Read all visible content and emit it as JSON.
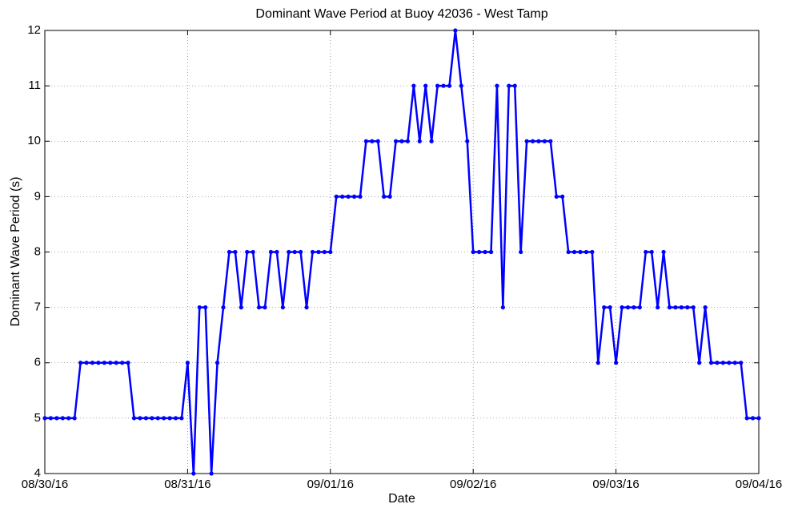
{
  "chart_data": {
    "type": "line",
    "title": "Dominant Wave Period at Buoy 42036 - West Tamp",
    "xlabel": "Date",
    "ylabel": "Dominant Wave Period (s)",
    "x": [
      "2016-08-30T00:00",
      "2016-08-30T01:00",
      "2016-08-30T02:00",
      "2016-08-30T03:00",
      "2016-08-30T04:00",
      "2016-08-30T05:00",
      "2016-08-30T06:00",
      "2016-08-30T07:00",
      "2016-08-30T08:00",
      "2016-08-30T09:00",
      "2016-08-30T10:00",
      "2016-08-30T11:00",
      "2016-08-30T12:00",
      "2016-08-30T13:00",
      "2016-08-30T14:00",
      "2016-08-30T15:00",
      "2016-08-30T16:00",
      "2016-08-30T17:00",
      "2016-08-30T18:00",
      "2016-08-30T19:00",
      "2016-08-30T20:00",
      "2016-08-30T21:00",
      "2016-08-30T22:00",
      "2016-08-30T23:00",
      "2016-08-31T00:00",
      "2016-08-31T01:00",
      "2016-08-31T02:00",
      "2016-08-31T03:00",
      "2016-08-31T04:00",
      "2016-08-31T05:00",
      "2016-08-31T06:00",
      "2016-08-31T07:00",
      "2016-08-31T08:00",
      "2016-08-31T09:00",
      "2016-08-31T10:00",
      "2016-08-31T11:00",
      "2016-08-31T12:00",
      "2016-08-31T13:00",
      "2016-08-31T14:00",
      "2016-08-31T15:00",
      "2016-08-31T16:00",
      "2016-08-31T17:00",
      "2016-08-31T18:00",
      "2016-08-31T19:00",
      "2016-08-31T20:00",
      "2016-08-31T21:00",
      "2016-08-31T22:00",
      "2016-08-31T23:00",
      "2016-09-01T00:00",
      "2016-09-01T01:00",
      "2016-09-01T02:00",
      "2016-09-01T03:00",
      "2016-09-01T04:00",
      "2016-09-01T05:00",
      "2016-09-01T06:00",
      "2016-09-01T07:00",
      "2016-09-01T08:00",
      "2016-09-01T09:00",
      "2016-09-01T10:00",
      "2016-09-01T11:00",
      "2016-09-01T12:00",
      "2016-09-01T13:00",
      "2016-09-01T14:00",
      "2016-09-01T15:00",
      "2016-09-01T16:00",
      "2016-09-01T17:00",
      "2016-09-01T18:00",
      "2016-09-01T19:00",
      "2016-09-01T20:00",
      "2016-09-01T21:00",
      "2016-09-01T22:00",
      "2016-09-01T23:00",
      "2016-09-02T00:00",
      "2016-09-02T01:00",
      "2016-09-02T02:00",
      "2016-09-02T03:00",
      "2016-09-02T04:00",
      "2016-09-02T05:00",
      "2016-09-02T06:00",
      "2016-09-02T07:00",
      "2016-09-02T08:00",
      "2016-09-02T09:00",
      "2016-09-02T10:00",
      "2016-09-02T11:00",
      "2016-09-02T12:00",
      "2016-09-02T13:00",
      "2016-09-02T14:00",
      "2016-09-02T15:00",
      "2016-09-02T16:00",
      "2016-09-02T17:00",
      "2016-09-02T18:00",
      "2016-09-02T19:00",
      "2016-09-02T20:00",
      "2016-09-02T21:00",
      "2016-09-02T22:00",
      "2016-09-02T23:00",
      "2016-09-03T00:00",
      "2016-09-03T01:00",
      "2016-09-03T02:00",
      "2016-09-03T03:00",
      "2016-09-03T04:00",
      "2016-09-03T05:00",
      "2016-09-03T06:00",
      "2016-09-03T07:00",
      "2016-09-03T08:00",
      "2016-09-03T09:00",
      "2016-09-03T10:00",
      "2016-09-03T11:00",
      "2016-09-03T12:00",
      "2016-09-03T13:00",
      "2016-09-03T14:00",
      "2016-09-03T15:00",
      "2016-09-03T16:00",
      "2016-09-03T17:00",
      "2016-09-03T18:00",
      "2016-09-03T19:00",
      "2016-09-03T20:00",
      "2016-09-03T21:00",
      "2016-09-03T22:00",
      "2016-09-03T23:00",
      "2016-09-04T00:00"
    ],
    "series": [
      {
        "color": "#0000ff",
        "values": [
          5,
          5,
          5,
          5,
          5,
          5,
          6,
          6,
          6,
          6,
          6,
          6,
          6,
          6,
          6,
          5,
          5,
          5,
          5,
          5,
          5,
          5,
          5,
          5,
          6,
          4,
          7,
          7,
          4,
          6,
          7,
          8,
          8,
          7,
          8,
          8,
          7,
          7,
          8,
          8,
          7,
          8,
          8,
          8,
          7,
          8,
          8,
          8,
          8,
          9,
          9,
          9,
          9,
          9,
          10,
          10,
          10,
          9,
          9,
          10,
          10,
          10,
          11,
          10,
          11,
          10,
          11,
          11,
          11,
          12,
          11,
          10,
          8,
          8,
          8,
          8,
          11,
          7,
          11,
          11,
          8,
          10,
          10,
          10,
          10,
          10,
          9,
          9,
          8,
          8,
          8,
          8,
          8,
          6,
          7,
          7,
          6,
          7,
          7,
          7,
          7,
          8,
          8,
          7,
          8,
          7,
          7,
          7,
          7,
          7,
          6,
          7,
          6,
          6,
          6,
          6,
          6,
          6,
          5,
          5,
          5
        ]
      }
    ],
    "xlim": [
      "2016-08-30T00:00",
      "2016-09-04T00:00"
    ],
    "xticks": [
      {
        "value": "2016-08-30T00:00",
        "label": "08/30/16"
      },
      {
        "value": "2016-08-31T00:00",
        "label": "08/31/16"
      },
      {
        "value": "2016-09-01T00:00",
        "label": "09/01/16"
      },
      {
        "value": "2016-09-02T00:00",
        "label": "09/02/16"
      },
      {
        "value": "2016-09-03T00:00",
        "label": "09/03/16"
      },
      {
        "value": "2016-09-04T00:00",
        "label": "09/04/16"
      }
    ],
    "ylim": [
      4,
      12
    ],
    "yticks": [
      4,
      5,
      6,
      7,
      8,
      9,
      10,
      11,
      12
    ],
    "grid": true
  }
}
